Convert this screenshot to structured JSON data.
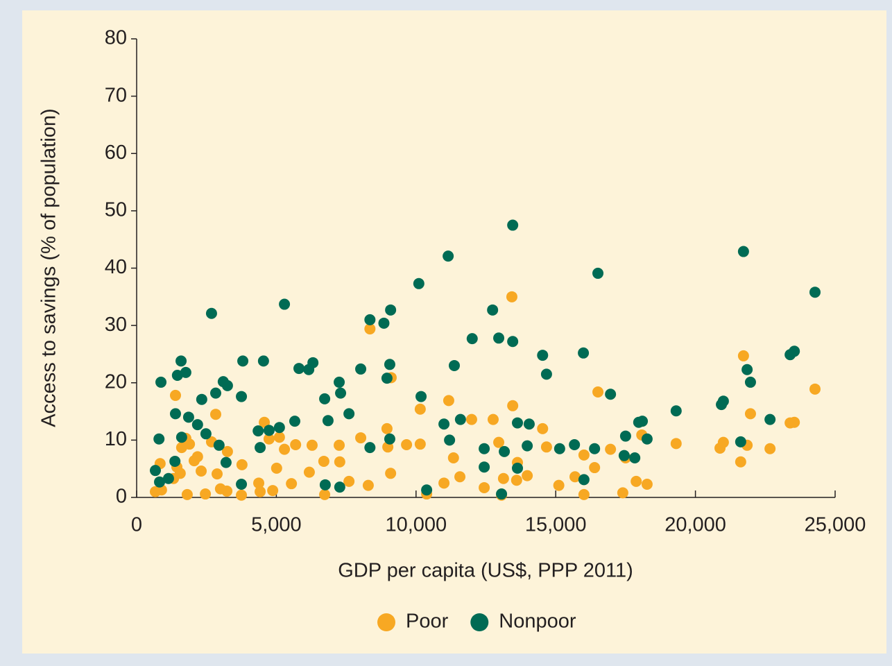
{
  "chart_data": {
    "type": "scatter",
    "xlabel": "GDP per capita (US$, PPP 2011)",
    "ylabel": "Access to savings (% of population)",
    "xlim": [
      0,
      25000
    ],
    "xticks": [
      0,
      {
        "value": 5000,
        "label": "5,000"
      },
      {
        "value": 10000,
        "label": "10,000"
      },
      {
        "value": 15000,
        "label": "15,000"
      },
      {
        "value": 20000,
        "label": "20,000"
      },
      {
        "value": 25000,
        "label": "25,000"
      }
    ],
    "ylim": [
      0,
      80
    ],
    "yticks": [
      0,
      10,
      20,
      30,
      40,
      50,
      60,
      70,
      80
    ],
    "legend": "bottom",
    "series": [
      {
        "name": "Poor",
        "color": "#f7a823",
        "x": [
          670,
          840,
          890,
          1390,
          1320,
          1440,
          1560,
          1610,
          1760,
          1890,
          1810,
          2060,
          2180,
          2310,
          2460,
          2680,
          2830,
          2880,
          3000,
          3250,
          3230,
          3770,
          3750,
          4370,
          4420,
          4570,
          4740,
          4870,
          5010,
          5110,
          5290,
          5540,
          5690,
          6180,
          6280,
          6700,
          6730,
          7250,
          7270,
          7600,
          8020,
          8290,
          8350,
          8960,
          8990,
          9090,
          9110,
          9660,
          10150,
          10150,
          10380,
          11000,
          11170,
          11340,
          11570,
          11990,
          12440,
          12760,
          12960,
          13130,
          13060,
          13430,
          13460,
          13630,
          13600,
          13980,
          14530,
          14670,
          15110,
          15690,
          16010,
          16010,
          16390,
          16510,
          16960,
          17400,
          17500,
          17880,
          18080,
          18270,
          19310,
          20880,
          21000,
          21620,
          21720,
          21850,
          21970,
          22670,
          23390,
          23540,
          24280
        ],
        "values": [
          1.0,
          5.9,
          1.3,
          17.8,
          3.3,
          5.3,
          4.2,
          8.7,
          10.3,
          9.3,
          0.5,
          6.4,
          7.1,
          4.6,
          0.6,
          9.7,
          14.5,
          4.1,
          1.5,
          8.0,
          1.1,
          5.7,
          0.4,
          2.5,
          1.0,
          13.1,
          10.2,
          1.2,
          5.1,
          10.5,
          8.4,
          2.4,
          9.2,
          4.4,
          9.1,
          6.3,
          0.5,
          9.1,
          6.2,
          2.8,
          10.4,
          2.1,
          29.4,
          12.0,
          8.8,
          4.2,
          20.9,
          9.2,
          15.4,
          9.3,
          0.6,
          2.5,
          16.9,
          6.9,
          3.6,
          13.6,
          1.7,
          13.6,
          9.6,
          3.3,
          0.4,
          35.0,
          16.0,
          6.1,
          3.0,
          3.8,
          12.0,
          8.8,
          2.1,
          3.6,
          7.4,
          0.5,
          5.2,
          18.4,
          8.4,
          0.8,
          6.9,
          2.8,
          10.9,
          2.3,
          9.4,
          8.6,
          9.6,
          6.2,
          24.7,
          9.1,
          14.6,
          8.5,
          13.0,
          13.1,
          18.9
        ]
      },
      {
        "name": "Nonpoor",
        "color": "#006b54",
        "x": [
          670,
          800,
          870,
          820,
          1140,
          1370,
          1390,
          1460,
          1590,
          1760,
          1610,
          1860,
          2180,
          2330,
          2480,
          2680,
          2830,
          2950,
          3100,
          3250,
          3200,
          3750,
          3800,
          3750,
          4350,
          4420,
          4540,
          4740,
          5110,
          5290,
          5660,
          5810,
          6160,
          6310,
          6730,
          6850,
          6750,
          7250,
          7300,
          7600,
          7270,
          8020,
          8350,
          8350,
          8850,
          8960,
          9090,
          9060,
          9060,
          10100,
          10180,
          10380,
          11000,
          11150,
          11200,
          11370,
          11590,
          12010,
          12440,
          12440,
          12740,
          12960,
          13160,
          13060,
          13460,
          13460,
          13630,
          13630,
          14050,
          13980,
          14530,
          14670,
          15140,
          15670,
          15990,
          16010,
          16390,
          16510,
          16960,
          17450,
          17500,
          17830,
          17970,
          18100,
          18270,
          19310,
          20930,
          21000,
          21620,
          21720,
          21850,
          21970,
          22670,
          23390,
          23540,
          24280
        ],
        "values": [
          4.7,
          10.2,
          20.1,
          2.7,
          3.3,
          6.3,
          14.6,
          21.3,
          23.8,
          21.8,
          10.5,
          14.0,
          12.7,
          17.1,
          11.1,
          32.1,
          18.2,
          9.1,
          20.2,
          19.5,
          6.1,
          17.6,
          23.8,
          2.3,
          11.6,
          8.7,
          23.8,
          11.7,
          12.2,
          33.7,
          13.3,
          22.5,
          22.3,
          23.5,
          17.2,
          13.4,
          2.2,
          20.1,
          18.2,
          14.6,
          1.8,
          22.4,
          31.0,
          8.7,
          30.4,
          20.8,
          32.7,
          23.2,
          10.2,
          37.3,
          17.6,
          1.3,
          12.8,
          42.1,
          10.0,
          23.0,
          13.6,
          27.7,
          8.5,
          5.3,
          32.7,
          27.8,
          8.0,
          0.6,
          27.2,
          47.5,
          13.0,
          5.1,
          12.8,
          9.0,
          24.8,
          21.5,
          8.5,
          9.2,
          25.2,
          3.1,
          8.5,
          39.1,
          18.0,
          7.3,
          10.7,
          6.9,
          13.1,
          13.3,
          10.2,
          15.1,
          16.2,
          16.8,
          9.7,
          42.9,
          22.3,
          20.1,
          13.6,
          24.9,
          25.5,
          35.8
        ]
      }
    ]
  }
}
